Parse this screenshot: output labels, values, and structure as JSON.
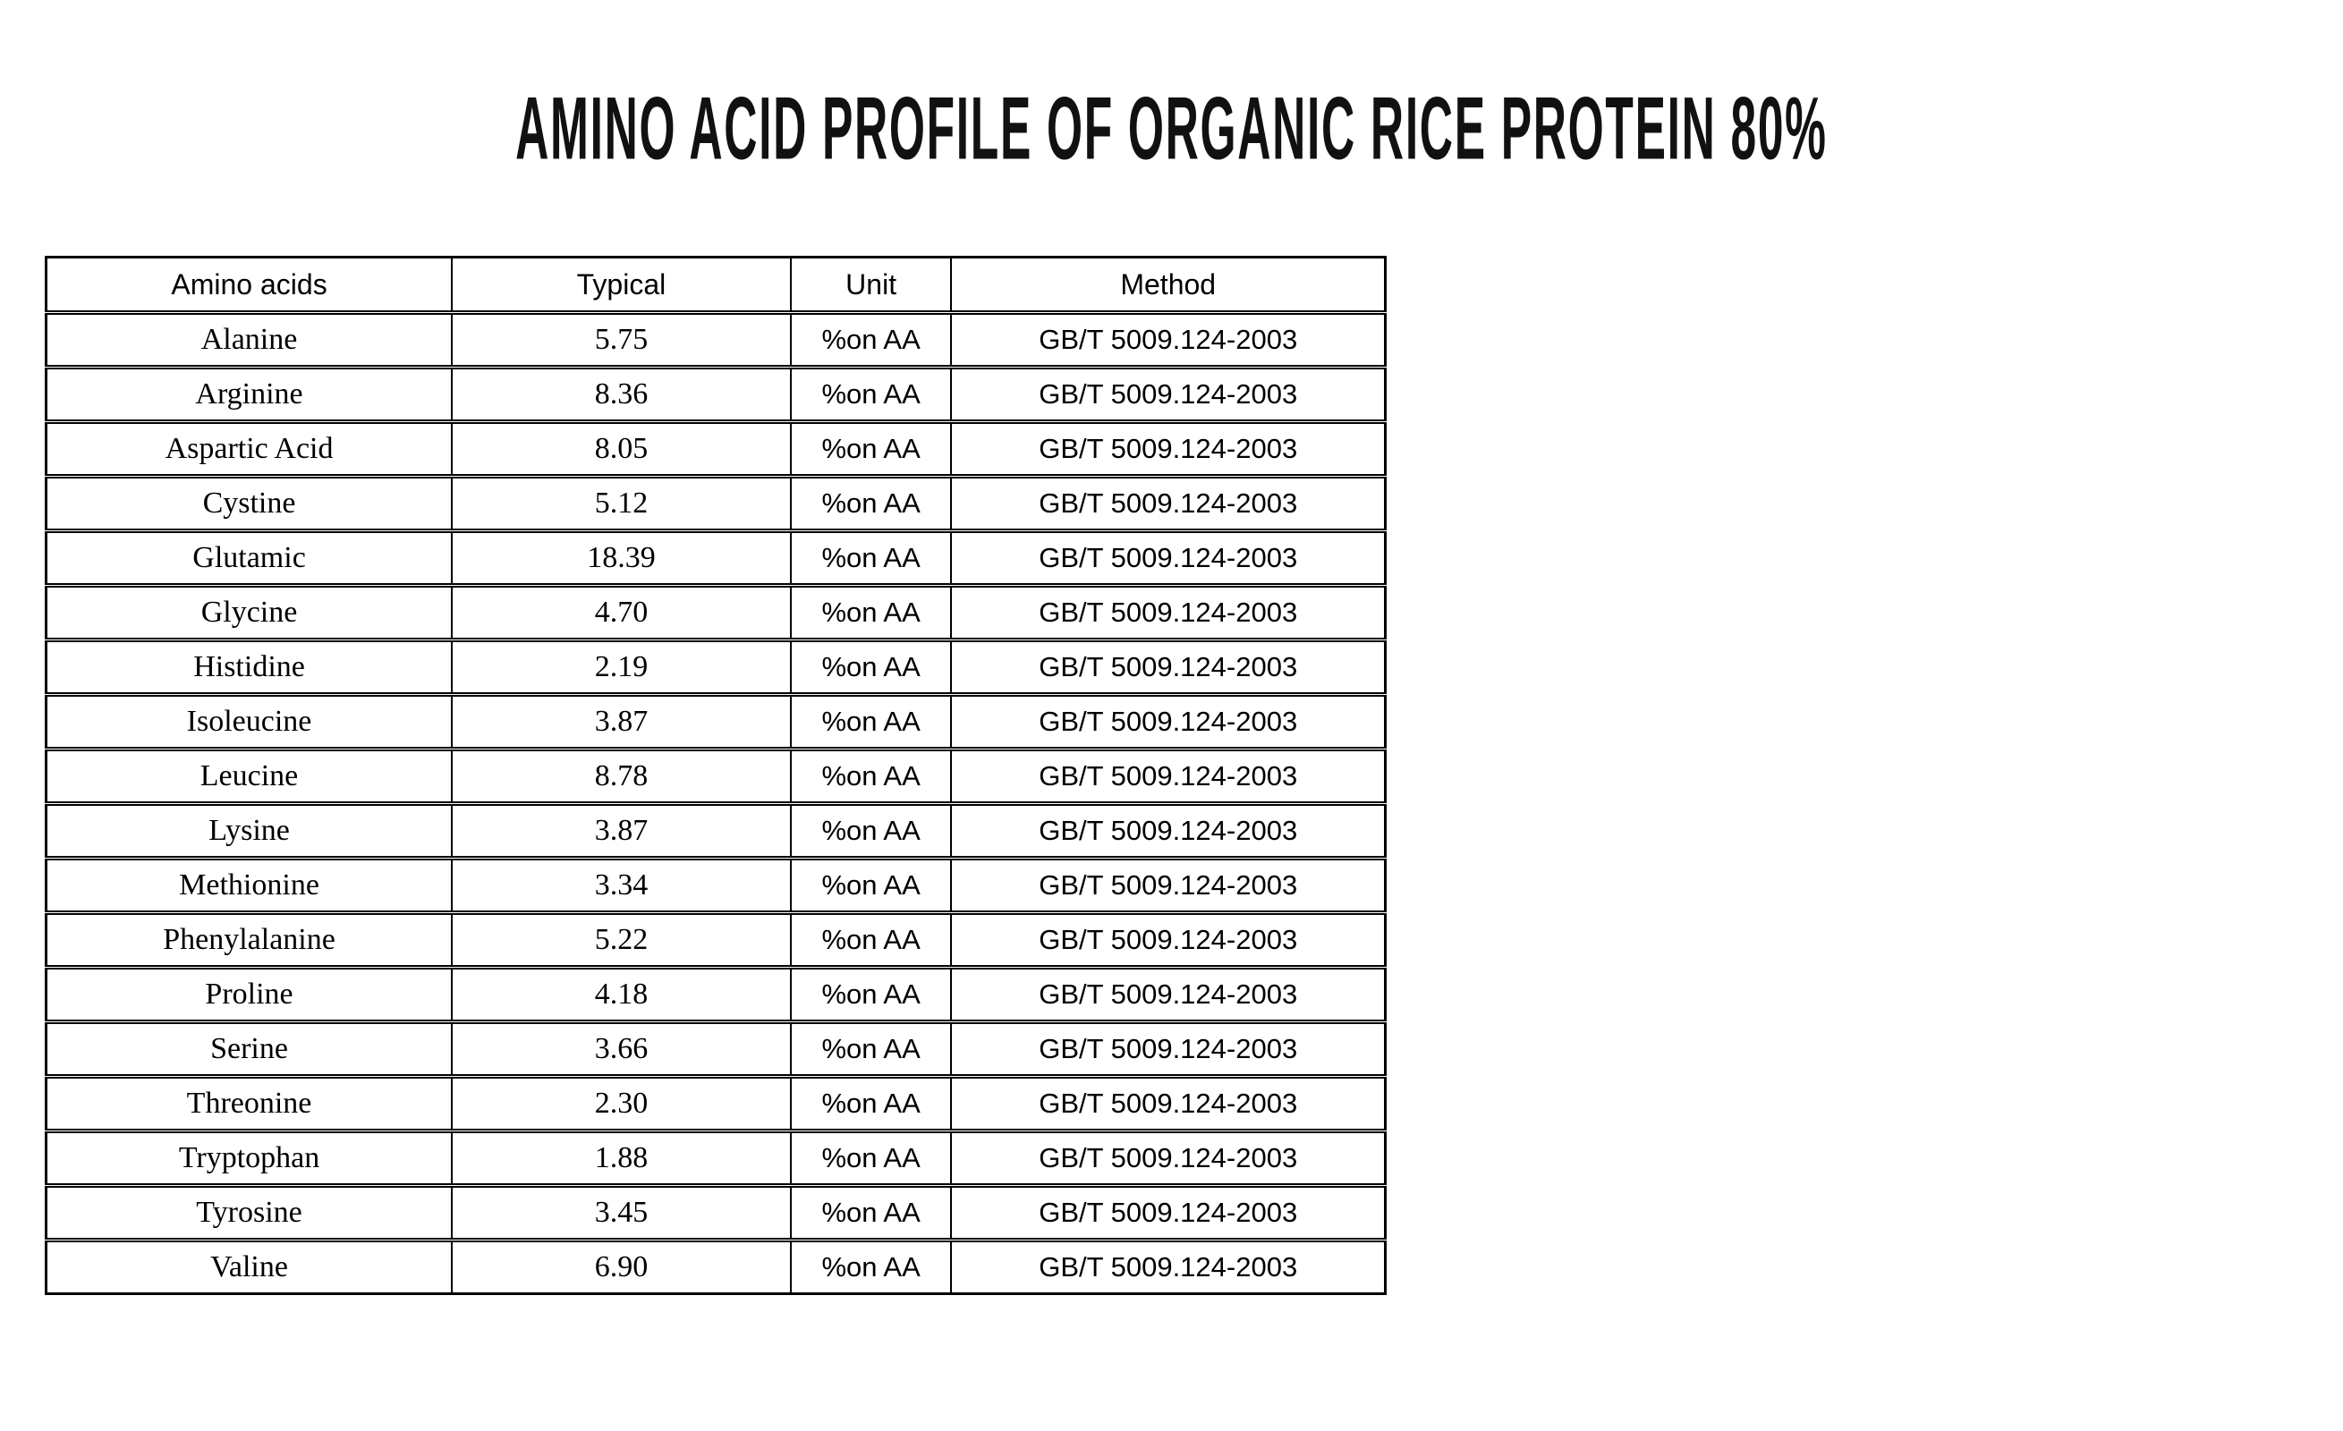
{
  "title": "AMINO ACID PROFILE OF ORGANIC RICE PROTEIN 80%",
  "table": {
    "columns": [
      "Amino acids",
      "Typical",
      "Unit",
      "Method"
    ],
    "rows": [
      {
        "amino_acid": "Alanine",
        "typical": "5.75",
        "unit": "%on AA",
        "method": "GB/T 5009.124-2003"
      },
      {
        "amino_acid": "Arginine",
        "typical": "8.36",
        "unit": "%on AA",
        "method": "GB/T 5009.124-2003"
      },
      {
        "amino_acid": "Aspartic Acid",
        "typical": "8.05",
        "unit": "%on AA",
        "method": "GB/T 5009.124-2003"
      },
      {
        "amino_acid": "Cystine",
        "typical": "5.12",
        "unit": "%on AA",
        "method": "GB/T 5009.124-2003"
      },
      {
        "amino_acid": "Glutamic",
        "typical": "18.39",
        "unit": "%on AA",
        "method": "GB/T 5009.124-2003"
      },
      {
        "amino_acid": "Glycine",
        "typical": "4.70",
        "unit": "%on AA",
        "method": "GB/T 5009.124-2003"
      },
      {
        "amino_acid": "Histidine",
        "typical": "2.19",
        "unit": "%on AA",
        "method": "GB/T 5009.124-2003"
      },
      {
        "amino_acid": "Isoleucine",
        "typical": "3.87",
        "unit": "%on AA",
        "method": "GB/T 5009.124-2003"
      },
      {
        "amino_acid": "Leucine",
        "typical": "8.78",
        "unit": "%on AA",
        "method": "GB/T 5009.124-2003"
      },
      {
        "amino_acid": "Lysine",
        "typical": "3.87",
        "unit": "%on AA",
        "method": "GB/T 5009.124-2003"
      },
      {
        "amino_acid": "Methionine",
        "typical": "3.34",
        "unit": "%on AA",
        "method": "GB/T 5009.124-2003"
      },
      {
        "amino_acid": "Phenylalanine",
        "typical": "5.22",
        "unit": "%on AA",
        "method": "GB/T 5009.124-2003"
      },
      {
        "amino_acid": "Proline",
        "typical": "4.18",
        "unit": "%on AA",
        "method": "GB/T 5009.124-2003"
      },
      {
        "amino_acid": "Serine",
        "typical": "3.66",
        "unit": "%on AA",
        "method": "GB/T 5009.124-2003"
      },
      {
        "amino_acid": "Threonine",
        "typical": "2.30",
        "unit": "%on AA",
        "method": "GB/T 5009.124-2003"
      },
      {
        "amino_acid": "Tryptophan",
        "typical": "1.88",
        "unit": "%on AA",
        "method": "GB/T 5009.124-2003"
      },
      {
        "amino_acid": "Tyrosine",
        "typical": "3.45",
        "unit": "%on AA",
        "method": "GB/T 5009.124-2003"
      },
      {
        "amino_acid": "Valine",
        "typical": "6.90",
        "unit": "%on AA",
        "method": "GB/T 5009.124-2003"
      }
    ]
  },
  "colors": {
    "text": "#000000",
    "background": "#ffffff",
    "border": "#000000"
  }
}
